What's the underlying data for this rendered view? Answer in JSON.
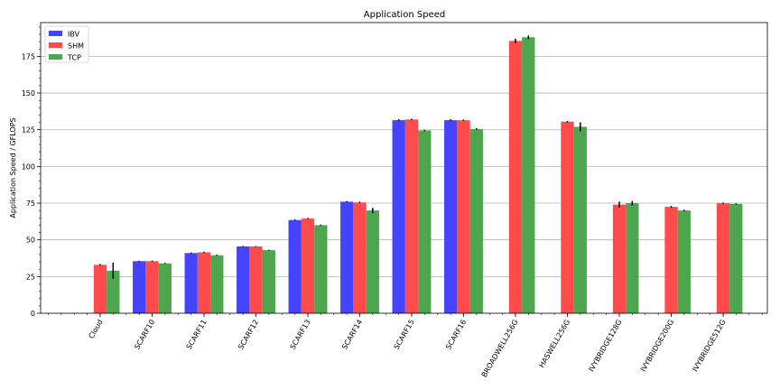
{
  "chart_data": {
    "type": "bar",
    "title": "Application Speed",
    "xlabel": "",
    "ylabel": "Application Speed / GFLOPS",
    "ylim": [
      0,
      198
    ],
    "yticks": [
      0,
      25,
      50,
      75,
      100,
      125,
      150,
      175
    ],
    "grid": "horizontal",
    "legend_position": "top-left",
    "categories": [
      "Cloud",
      "SCARF10",
      "SCARF11",
      "SCARF12",
      "SCARF13",
      "SCARF14",
      "SCARF15",
      "SCARF16",
      "BROADWELL256G",
      "HASWELL256G",
      "IVYBRIDGE128G",
      "IVYBRIDGE200G",
      "IVYBRIDGE512G"
    ],
    "series": [
      {
        "name": "IBV",
        "color": "#4444ff",
        "values": [
          null,
          35.5,
          41,
          45.5,
          63.5,
          76,
          131.5,
          131.5,
          null,
          null,
          null,
          null,
          null
        ],
        "errors": [
          null,
          0.3,
          0.4,
          0.3,
          0.4,
          0.4,
          0.6,
          0.6,
          null,
          null,
          null,
          null,
          null
        ]
      },
      {
        "name": "SHM",
        "color": "#ff4b4b",
        "values": [
          33,
          35.5,
          41.5,
          45.5,
          64.5,
          75.5,
          132,
          131.5,
          185.5,
          130.5,
          74,
          72.5,
          75
        ],
        "errors": [
          0.5,
          0.4,
          0.4,
          0.3,
          0.4,
          0.5,
          0.5,
          0.5,
          1.5,
          0.5,
          2.0,
          0.6,
          0.4
        ]
      },
      {
        "name": "TCP",
        "color": "#4da64d",
        "values": [
          29,
          34,
          39.5,
          43,
          60,
          70,
          124.5,
          125.5,
          188,
          127,
          75,
          70,
          74.5
        ],
        "errors": [
          5.5,
          0.3,
          0.4,
          0.3,
          0.4,
          1.8,
          0.5,
          0.5,
          1.2,
          3.0,
          1.5,
          0.5,
          0.4
        ]
      }
    ]
  }
}
